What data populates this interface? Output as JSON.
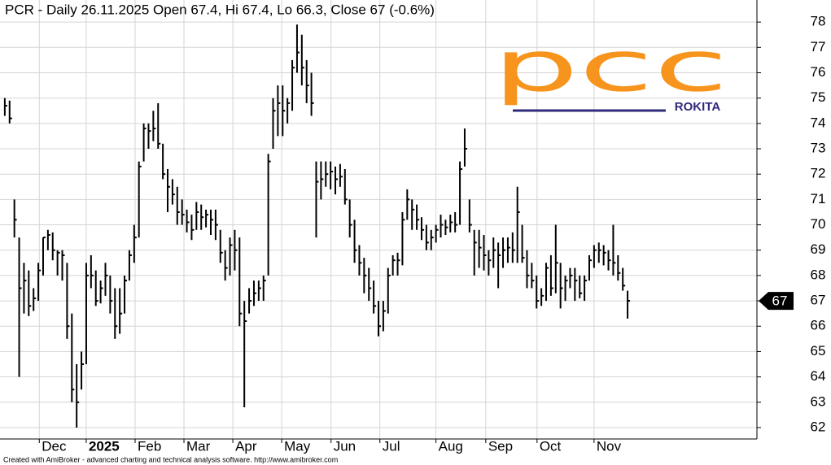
{
  "chart_data": {
    "type": "ohlc",
    "title": "PCR - Daily 26.11.2025 Open 67.4, Hi 67.4, Lo 66.3, Close 67 (-0.6%)",
    "footer": "Created with AmiBroker - advanced charting and technical analysis software. http://www.amibroker.com",
    "logo_text": "pcc",
    "logo_subtext": "ROKITA",
    "color": "#000000",
    "grid": true,
    "ylim": [
      61.55,
      78.87
    ],
    "yticks": [
      62,
      63,
      64,
      65,
      66,
      67,
      68,
      69,
      70,
      71,
      72,
      73,
      74,
      75,
      76,
      77,
      78
    ],
    "xlim": [
      0,
      158
    ],
    "xticks": [
      {
        "value": 8.2,
        "label": "Dec"
      },
      {
        "value": 18,
        "label": "2025"
      },
      {
        "value": 28.2,
        "label": "Feb"
      },
      {
        "value": 38.4,
        "label": "Mar"
      },
      {
        "value": 48.6,
        "label": "Apr"
      },
      {
        "value": 58.8,
        "label": "May"
      },
      {
        "value": 69.1,
        "label": "Jun"
      },
      {
        "value": 79.3,
        "label": "Jul"
      },
      {
        "value": 91,
        "label": "Aug"
      },
      {
        "value": 101.4,
        "label": "Sep"
      },
      {
        "value": 112.1,
        "label": "Oct"
      },
      {
        "value": 124,
        "label": "Nov"
      }
    ],
    "high": [
      75,
      74.9,
      71,
      69.5,
      68.5,
      68.2,
      67.5,
      68.5,
      69.5,
      69.8,
      69.7,
      69,
      69,
      68.5,
      66.5,
      64.5,
      65,
      68.5,
      68.8,
      68.2,
      67.8,
      68.5,
      68,
      67.5,
      67.5,
      68,
      69,
      70,
      72.5,
      74,
      74,
      74.5,
      74.8,
      73.2,
      72.2,
      71.8,
      71.5,
      71,
      70.6,
      70.4,
      70.9,
      70.8,
      70.6,
      70.6,
      70.6,
      69.8,
      69,
      69.5,
      69.8,
      69.5,
      67,
      67.5,
      67.8,
      67.8,
      68,
      72.8,
      75,
      75.5,
      75.5,
      75,
      76.5,
      77.9,
      77.5,
      76.5,
      76,
      72.5,
      72.5,
      72.5,
      72.5,
      72.3,
      72.4,
      72.2,
      71,
      70.2,
      69.2,
      68.7,
      68.3,
      67.8,
      67,
      67,
      68.3,
      68.8,
      68.9,
      70.5,
      71.4,
      71,
      70.8,
      70.3,
      70,
      69.8,
      70,
      70.4,
      70.2,
      70.4,
      70.5,
      72.5,
      73.8,
      71,
      69.8,
      69.8,
      69.6,
      69,
      69.5,
      69.3,
      69.5,
      69.5,
      69.7,
      71.5,
      70,
      69,
      68.5,
      68,
      67.5,
      68.5,
      68.8,
      70,
      68.5,
      68,
      68.3,
      68.3,
      68,
      68,
      68.8,
      69.2,
      69.3,
      69.2,
      69,
      70,
      68.8,
      68.3,
      67.4
    ],
    "low": [
      74.3,
      74,
      69.5,
      64,
      66.5,
      66.4,
      66.6,
      67,
      68,
      69,
      68.6,
      68,
      67.8,
      65.5,
      63,
      62,
      63.5,
      64.5,
      67.5,
      66.8,
      66.9,
      67.2,
      66.5,
      65.5,
      65.7,
      66.5,
      67.8,
      68.5,
      69.5,
      72.5,
      73,
      73.3,
      73,
      71.8,
      70.5,
      70.8,
      70,
      70,
      69.7,
      69.4,
      69.8,
      69.8,
      69.9,
      69.6,
      69.4,
      68.5,
      67.8,
      68,
      68.2,
      66,
      62.8,
      66.5,
      66.8,
      67,
      67,
      68,
      73,
      73.5,
      73.5,
      74,
      74.5,
      76,
      75.5,
      74.8,
      74.3,
      69.5,
      71,
      71.5,
      71.4,
      71.2,
      71.5,
      70.8,
      69.5,
      68.5,
      68,
      67.3,
      67,
      66.5,
      65.6,
      65.8,
      66.5,
      68,
      68,
      68.4,
      70.2,
      69.8,
      69.8,
      69.4,
      69,
      69,
      69.3,
      69.5,
      69.6,
      69.7,
      69.7,
      70,
      72.3,
      69.7,
      68,
      68.3,
      68.2,
      68,
      68.3,
      67.5,
      68.3,
      68.5,
      68.5,
      68.5,
      68.5,
      67.5,
      67.5,
      66.7,
      66.8,
      67,
      67.2,
      67.3,
      66.7,
      67,
      67.5,
      67,
      67.1,
      67,
      67.8,
      68.3,
      68.5,
      68.4,
      68.2,
      68,
      67.8,
      67.4,
      66.3
    ],
    "close": [
      74.7,
      74.2,
      70.2,
      67.5,
      67.8,
      66.8,
      67.1,
      68.2,
      69.5,
      69.6,
      69,
      68.9,
      68.8,
      66,
      63.5,
      63,
      64.5,
      68,
      68,
      67,
      67.5,
      68,
      67,
      66,
      66.5,
      67.8,
      68.8,
      69.5,
      72.3,
      73.8,
      73.7,
      73.8,
      73.2,
      72,
      71.5,
      71.2,
      70.5,
      70.4,
      70.1,
      69.8,
      70.5,
      70.3,
      70.4,
      70.2,
      70,
      68.9,
      68.3,
      69.2,
      69,
      66.5,
      66.2,
      67,
      67.3,
      67.5,
      67.8,
      72.5,
      74.5,
      74.8,
      74.5,
      74.8,
      76.2,
      76.8,
      76.2,
      75.5,
      74.8,
      71.7,
      71.8,
      72,
      72.1,
      71.8,
      71.9,
      71,
      70,
      69,
      68.5,
      68,
      67.5,
      66.8,
      66,
      66.6,
      68,
      68.6,
      68.6,
      70.2,
      71,
      70.6,
      70.2,
      69.8,
      69.3,
      69.5,
      69.8,
      70,
      69.9,
      70.1,
      70,
      72.2,
      73,
      70,
      69.3,
      69.1,
      68.8,
      68.6,
      69,
      68.8,
      69,
      69.1,
      69,
      70.5,
      68.7,
      68,
      67.8,
      67,
      67.2,
      68.3,
      67.5,
      68.5,
      67.5,
      67.8,
      68,
      67.8,
      67.3,
      67.8,
      68.6,
      69,
      69,
      68.9,
      68.6,
      68.5,
      68.1,
      67.6,
      67
    ]
  }
}
